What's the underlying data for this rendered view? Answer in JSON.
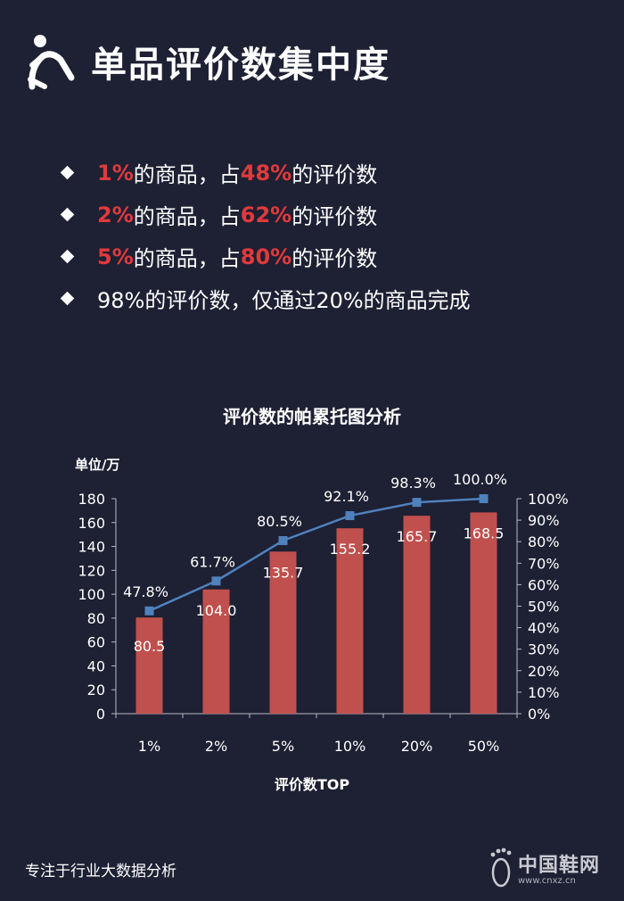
{
  "header": {
    "title": "单品评价数集中度",
    "icon": "runner-icon"
  },
  "bullets": [
    {
      "highlight1": "1%",
      "mid": "的商品，占",
      "highlight2": "48%",
      "tail": "的评价数"
    },
    {
      "highlight1": "2%",
      "mid": "的商品，占",
      "highlight2": "62%",
      "tail": "的评价数"
    },
    {
      "highlight1": "5%",
      "mid": "的商品，占",
      "highlight2": "80%",
      "tail": "的评价数"
    },
    {
      "plain": "98%的评价数，仅通过20%的商品完成"
    }
  ],
  "colors": {
    "background": "#1e2033",
    "bar": "#c0504d",
    "line": "#4f81bd",
    "highlight": "#e03a3d"
  },
  "chart_data": {
    "type": "bar",
    "title": "评价数的帕累托图分析",
    "ylabel": "单位/万",
    "xlabel": "评价数TOP",
    "categories": [
      "1%",
      "2%",
      "5%",
      "10%",
      "20%",
      "50%"
    ],
    "series": [
      {
        "type": "bar",
        "values": [
          80.5,
          104.0,
          135.7,
          155.2,
          165.7,
          168.5
        ],
        "labels": [
          "80.5",
          "104.0",
          "135.7",
          "155.2",
          "165.7",
          "168.5"
        ]
      },
      {
        "type": "line",
        "axis": "right",
        "values": [
          47.8,
          61.7,
          80.5,
          92.1,
          98.3,
          100.0
        ],
        "labels": [
          "47.8%",
          "61.7%",
          "80.5%",
          "92.1%",
          "98.3%",
          "100.0%"
        ]
      }
    ],
    "ylim": [
      0,
      180
    ],
    "yticks": [
      "0",
      "20",
      "40",
      "60",
      "80",
      "100",
      "120",
      "140",
      "160",
      "180"
    ],
    "y2lim": [
      0,
      100
    ],
    "y2ticks": [
      "0%",
      "10%",
      "20%",
      "30%",
      "40%",
      "50%",
      "60%",
      "70%",
      "80%",
      "90%",
      "100%"
    ],
    "grid": false,
    "legend": "none"
  },
  "footer": {
    "text": "专注于行业大数据分析"
  },
  "watermark": {
    "name": "中国鞋网",
    "url": "www.cnxz.cn"
  }
}
